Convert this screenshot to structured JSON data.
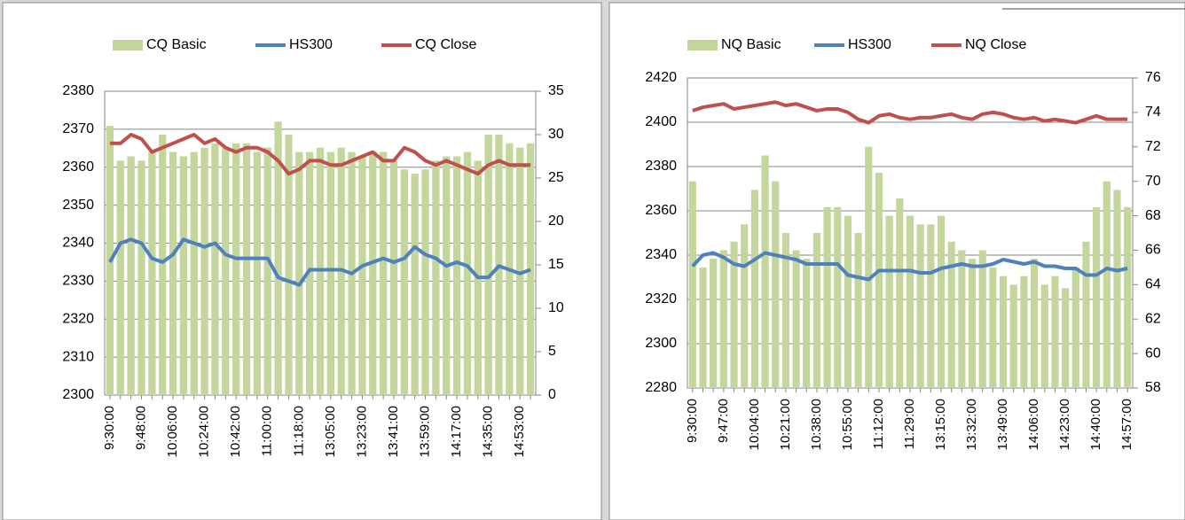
{
  "chart_data": [
    {
      "type": "combo",
      "categories": [
        "9:30:00",
        null,
        null,
        "9:48:00",
        null,
        null,
        "10:06:00",
        null,
        null,
        "10:24:00",
        null,
        null,
        "10:42:00",
        null,
        null,
        "11:00:00",
        null,
        null,
        "11:18:00",
        null,
        null,
        "13:05:00",
        null,
        null,
        "13:23:00",
        null,
        null,
        "13:41:00",
        null,
        null,
        "13:59:00",
        null,
        null,
        "14:17:00",
        null,
        null,
        "14:35:00",
        null,
        null,
        "14:53:00",
        null
      ],
      "series": [
        {
          "name": "CQ Basic",
          "type": "bar",
          "axis": "y2",
          "color": "#c3d69b",
          "values": [
            31,
            27,
            27.5,
            27,
            28,
            30,
            28,
            27.5,
            28,
            28.5,
            29,
            28.5,
            29,
            29,
            28,
            28.5,
            31.5,
            30,
            28,
            28,
            28.5,
            28,
            28.5,
            28,
            27.5,
            28,
            28,
            27,
            26,
            25.5,
            26,
            27,
            27.5,
            27.5,
            28,
            27,
            30,
            30,
            29,
            28.5,
            29
          ]
        },
        {
          "name": "HS300",
          "type": "line",
          "axis": "y",
          "color": "#4f81bd",
          "values": [
            2335,
            2340,
            2341,
            2340,
            2336,
            2335,
            2337,
            2341,
            2340,
            2339,
            2340,
            2337,
            2336,
            2336,
            2336,
            2336,
            2331,
            2330,
            2329,
            2333,
            2333,
            2333,
            2333,
            2332,
            2334,
            2335,
            2336,
            2335,
            2336,
            2339,
            2337,
            2336,
            2334,
            2335,
            2334,
            2331,
            2331,
            2334,
            2333,
            2332,
            2333
          ]
        },
        {
          "name": "CQ Close",
          "type": "line",
          "axis": "y2",
          "color": "#c0504d",
          "values": [
            29,
            29,
            30,
            29.5,
            28,
            28.5,
            29,
            29.5,
            30,
            29,
            29.5,
            28.5,
            28,
            28.5,
            28.5,
            28,
            27,
            25.5,
            26,
            27,
            27,
            26.5,
            26.5,
            27,
            27.5,
            28,
            27,
            27,
            28.5,
            28,
            27,
            26.5,
            27,
            26.5,
            26,
            25.5,
            26.5,
            27,
            26.5,
            26.5,
            26.5
          ]
        }
      ],
      "ylim": [
        2300,
        2380
      ],
      "yticks": [
        2300,
        2310,
        2320,
        2330,
        2340,
        2350,
        2360,
        2370,
        2380
      ],
      "y2lim": [
        0,
        35
      ],
      "y2ticks": [
        0,
        5,
        10,
        15,
        20,
        25,
        30,
        35
      ],
      "grid": true,
      "legend": "top"
    },
    {
      "type": "combo",
      "categories": [
        "9:30:00",
        null,
        null,
        "9:47:00",
        null,
        null,
        "10:04:00",
        null,
        null,
        "10:21:00",
        null,
        null,
        "10:38:00",
        null,
        null,
        "10:55:00",
        null,
        null,
        "11:12:00",
        null,
        null,
        "11:29:00",
        null,
        null,
        "13:15:00",
        null,
        null,
        "13:32:00",
        null,
        null,
        "13:49:00",
        null,
        null,
        "14:06:00",
        null,
        null,
        "14:23:00",
        null,
        null,
        "14:40:00",
        null,
        null,
        "14:57:00"
      ],
      "series": [
        {
          "name": "NQ Basic",
          "type": "bar",
          "axis": "y2",
          "color": "#c3d69b",
          "values": [
            70,
            65,
            65.5,
            66,
            66.5,
            67.5,
            69.5,
            71.5,
            70,
            67,
            66,
            65.5,
            67,
            68.5,
            68.5,
            68,
            67,
            72,
            70.5,
            68,
            69,
            68,
            67.5,
            67.5,
            68,
            66.5,
            66,
            65.5,
            66,
            65,
            64.5,
            64,
            64.5,
            65.5,
            64,
            64.5,
            63.8,
            65,
            66.5,
            68.5,
            70,
            69.5,
            68.5
          ]
        },
        {
          "name": "HS300",
          "type": "line",
          "axis": "y",
          "color": "#4f81bd",
          "values": [
            2335,
            2340,
            2341,
            2339,
            2336,
            2335,
            2338,
            2341,
            2340,
            2339,
            2338,
            2336,
            2336,
            2336,
            2336,
            2331,
            2330,
            2329,
            2333,
            2333,
            2333,
            2333,
            2332,
            2332,
            2334,
            2335,
            2336,
            2335,
            2335,
            2336,
            2338,
            2337,
            2336,
            2337,
            2335,
            2335,
            2334,
            2334,
            2331,
            2331,
            2334,
            2333,
            2334
          ]
        },
        {
          "name": "NQ Close",
          "type": "line",
          "axis": "y2",
          "color": "#c0504d",
          "values": [
            74.1,
            74.3,
            74.4,
            74.5,
            74.2,
            74.3,
            74.4,
            74.5,
            74.6,
            74.4,
            74.5,
            74.3,
            74.1,
            74.2,
            74.2,
            74.0,
            73.6,
            73.4,
            73.8,
            73.9,
            73.7,
            73.6,
            73.7,
            73.7,
            73.8,
            73.9,
            73.7,
            73.6,
            73.9,
            74.0,
            73.9,
            73.7,
            73.6,
            73.7,
            73.5,
            73.6,
            73.5,
            73.4,
            73.6,
            73.8,
            73.6,
            73.6,
            73.6
          ]
        }
      ],
      "ylim": [
        2280,
        2420
      ],
      "yticks": [
        2280,
        2300,
        2320,
        2340,
        2360,
        2380,
        2400,
        2420
      ],
      "y2lim": [
        58,
        76
      ],
      "y2ticks": [
        58,
        60,
        62,
        64,
        66,
        68,
        70,
        72,
        74,
        76
      ],
      "grid": true,
      "legend": "top"
    }
  ]
}
